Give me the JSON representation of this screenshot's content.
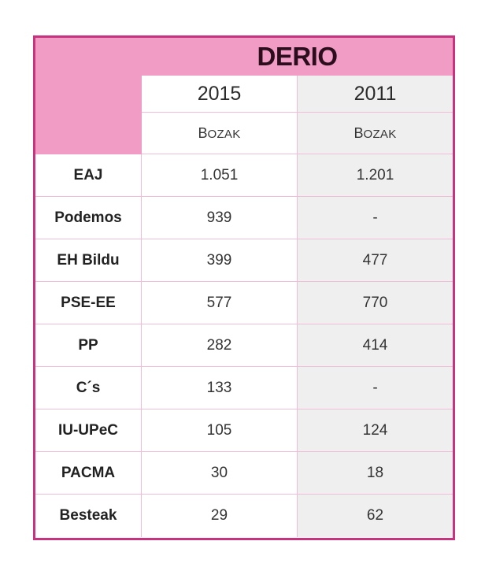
{
  "table": {
    "title": "DERIO",
    "years": [
      "2015",
      "2011"
    ],
    "subheader": [
      "Bozak",
      "Bozak"
    ],
    "rows": [
      {
        "party": "EAJ",
        "v2015": "1.051",
        "v2011": "1.201"
      },
      {
        "party": "Podemos",
        "v2015": "939",
        "v2011": "-"
      },
      {
        "party": "EH Bildu",
        "v2015": "399",
        "v2011": "477"
      },
      {
        "party": "PSE-EE",
        "v2015": "577",
        "v2011": "770"
      },
      {
        "party": "PP",
        "v2015": "282",
        "v2011": "414"
      },
      {
        "party": "C´s",
        "v2015": "133",
        "v2011": "-"
      },
      {
        "party": "IU-UPeC",
        "v2015": "105",
        "v2011": "124"
      },
      {
        "party": "PACMA",
        "v2015": "30",
        "v2011": "18"
      },
      {
        "party": "Besteak",
        "v2015": "29",
        "v2011": "62"
      }
    ]
  },
  "colors": {
    "border": "#c8337f",
    "header_fill": "#f19cc4",
    "grid_line": "#f1bcd5",
    "column_2011_fill": "#efefef"
  }
}
